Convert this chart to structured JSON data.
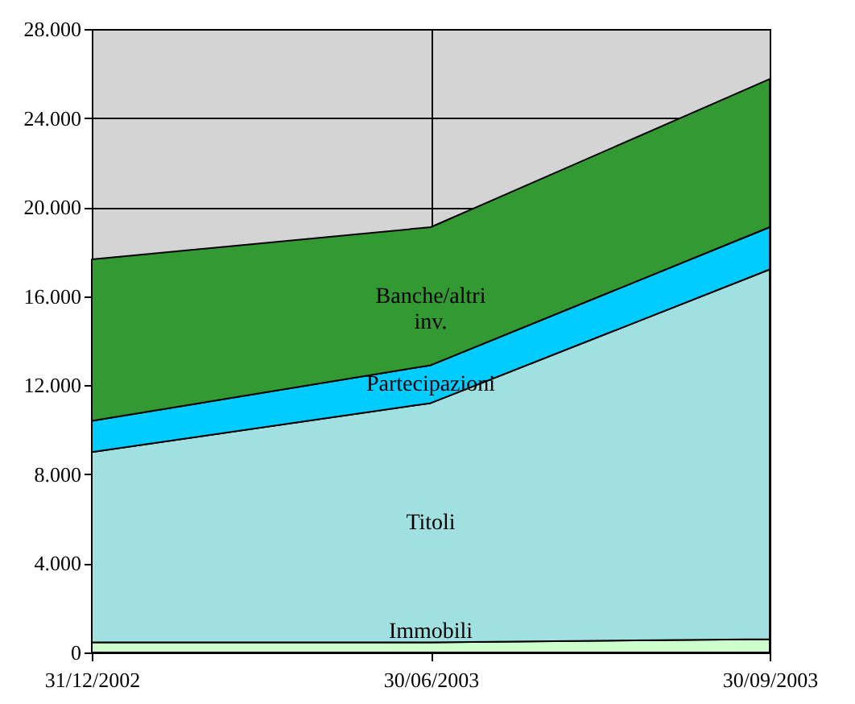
{
  "chart_data": {
    "type": "area",
    "stacked": true,
    "categories": [
      "31/12/2002",
      "30/06/2003",
      "30/09/2003"
    ],
    "series": [
      {
        "name": "Immobili",
        "color": "#ccffcc",
        "values": [
          450,
          450,
          600
        ]
      },
      {
        "name": "Titoli",
        "color": "#a0e0e0",
        "values": [
          8550,
          10750,
          16600
        ]
      },
      {
        "name": "Partecipazioni",
        "color": "#00ccff",
        "values": [
          1400,
          1700,
          1900
        ]
      },
      {
        "name": "Banche/altri inv.",
        "color": "#339933",
        "values": [
          7250,
          6200,
          6650
        ]
      }
    ],
    "ylim": [
      0,
      28000
    ],
    "yticks": [
      {
        "value": 0,
        "label": "0"
      },
      {
        "value": 4000,
        "label": "4.000"
      },
      {
        "value": 8000,
        "label": "8.000"
      },
      {
        "value": 12000,
        "label": "12.000"
      },
      {
        "value": 16000,
        "label": "16.000"
      },
      {
        "value": 20000,
        "label": "20.000"
      },
      {
        "value": 24000,
        "label": "24.000"
      },
      {
        "value": 28000,
        "label": "28.000"
      }
    ],
    "grid": true,
    "legend": false
  }
}
